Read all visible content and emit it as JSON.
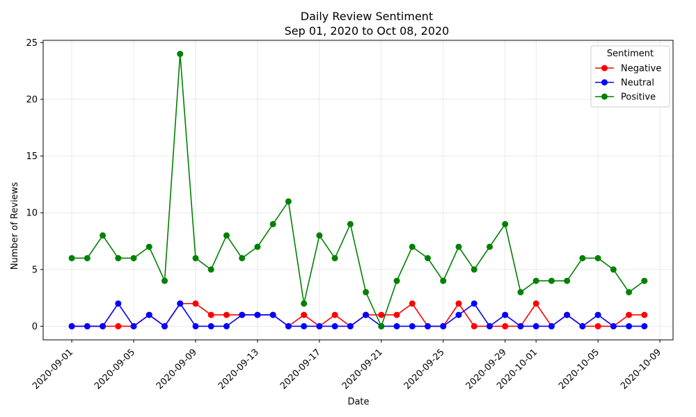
{
  "chart_data": {
    "type": "line",
    "title": "Daily Review Sentiment",
    "subtitle": "Sep 01, 2020 to Oct 08, 2020",
    "xlabel": "Date",
    "ylabel": "Number of Reviews",
    "x": [
      "2020-09-01",
      "2020-09-02",
      "2020-09-03",
      "2020-09-04",
      "2020-09-05",
      "2020-09-06",
      "2020-09-07",
      "2020-09-08",
      "2020-09-09",
      "2020-09-10",
      "2020-09-11",
      "2020-09-12",
      "2020-09-13",
      "2020-09-14",
      "2020-09-15",
      "2020-09-16",
      "2020-09-17",
      "2020-09-18",
      "2020-09-19",
      "2020-09-20",
      "2020-09-21",
      "2020-09-22",
      "2020-09-23",
      "2020-09-24",
      "2020-09-25",
      "2020-09-26",
      "2020-09-27",
      "2020-09-28",
      "2020-09-29",
      "2020-09-30",
      "2020-10-01",
      "2020-10-02",
      "2020-10-03",
      "2020-10-04",
      "2020-10-05",
      "2020-10-06",
      "2020-10-07",
      "2020-10-08"
    ],
    "series": [
      {
        "name": "Negative",
        "color": "#ff0000",
        "values": [
          0,
          0,
          0,
          0,
          0,
          1,
          0,
          2,
          2,
          1,
          1,
          1,
          1,
          1,
          0,
          1,
          0,
          1,
          0,
          1,
          1,
          1,
          2,
          0,
          0,
          2,
          0,
          0,
          0,
          0,
          2,
          0,
          1,
          0,
          0,
          0,
          1,
          1
        ]
      },
      {
        "name": "Neutral",
        "color": "#0000ff",
        "values": [
          0,
          0,
          0,
          2,
          0,
          1,
          0,
          2,
          0,
          0,
          0,
          1,
          1,
          1,
          0,
          0,
          0,
          0,
          0,
          1,
          0,
          0,
          0,
          0,
          0,
          1,
          2,
          0,
          1,
          0,
          0,
          0,
          1,
          0,
          1,
          0,
          0,
          0
        ]
      },
      {
        "name": "Positive",
        "color": "#008000",
        "values": [
          6,
          6,
          8,
          6,
          6,
          7,
          4,
          24,
          6,
          5,
          8,
          6,
          7,
          9,
          11,
          2,
          8,
          6,
          9,
          3,
          0,
          4,
          7,
          6,
          4,
          7,
          5,
          7,
          9,
          3,
          4,
          4,
          4,
          6,
          6,
          5,
          3,
          4
        ]
      }
    ],
    "x_ticks": [
      "2020-09-01",
      "2020-09-05",
      "2020-09-09",
      "2020-09-13",
      "2020-09-17",
      "2020-09-21",
      "2020-09-25",
      "2020-09-29",
      "2020-10-01",
      "2020-10-05",
      "2020-10-09"
    ],
    "y_ticks": [
      0,
      5,
      10,
      15,
      20,
      25
    ],
    "ylim": [
      -1.2,
      25.2
    ],
    "xlim": [
      "2020-08-30T03:36",
      "2020-10-09T20:24"
    ],
    "grid": true,
    "legend": {
      "title": "Sentiment",
      "placement": "top-right"
    }
  }
}
